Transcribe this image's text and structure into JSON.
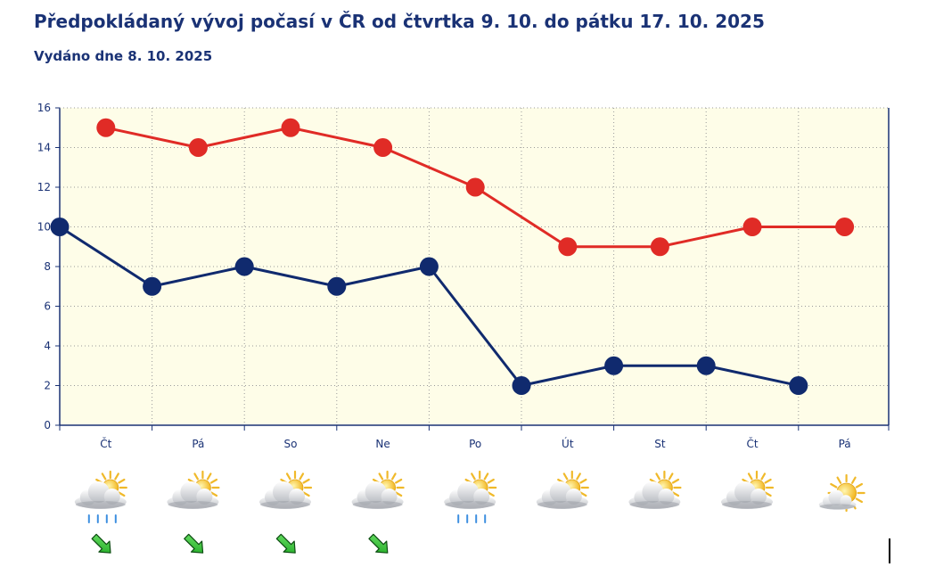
{
  "header": {
    "title": "Předpokládaný vývoj počasí v ČR od čtvrtka 9. 10. do pátku 17. 10. 2025",
    "issued": "Vydáno dne 8. 10. 2025"
  },
  "chart_data": {
    "type": "line",
    "categories": [
      "Čt",
      "Pá",
      "So",
      "Ne",
      "Po",
      "Út",
      "St",
      "Čt",
      "Pá"
    ],
    "ylim": [
      0,
      16
    ],
    "yticks": [
      0,
      2,
      4,
      6,
      8,
      10,
      12,
      14,
      16
    ],
    "grid": true,
    "series": [
      {
        "color": "#e02b26",
        "values": [
          15,
          14,
          15,
          14,
          12,
          9,
          9,
          10,
          10
        ]
      },
      {
        "color": "#102a6e",
        "values": [
          10,
          7,
          8,
          7,
          8,
          2,
          3,
          3,
          2
        ]
      }
    ],
    "weather_icons": [
      "sun-behind-cloud-rain-icon",
      "sun-behind-cloud-icon",
      "sun-behind-cloud-icon",
      "sun-behind-cloud-icon",
      "sun-behind-cloud-rain-icon",
      "sun-behind-cloud-icon",
      "sun-behind-cloud-icon",
      "sun-behind-cloud-icon",
      "sun-small-cloud-icon"
    ],
    "wind_arrows": [
      "southeast-arrow-icon",
      "southeast-arrow-icon",
      "southeast-arrow-icon",
      "southeast-arrow-icon"
    ],
    "colors": {
      "plot_background": "#fefde8",
      "axis": "#1a3275",
      "wind_arrow": "#22c22a"
    }
  }
}
